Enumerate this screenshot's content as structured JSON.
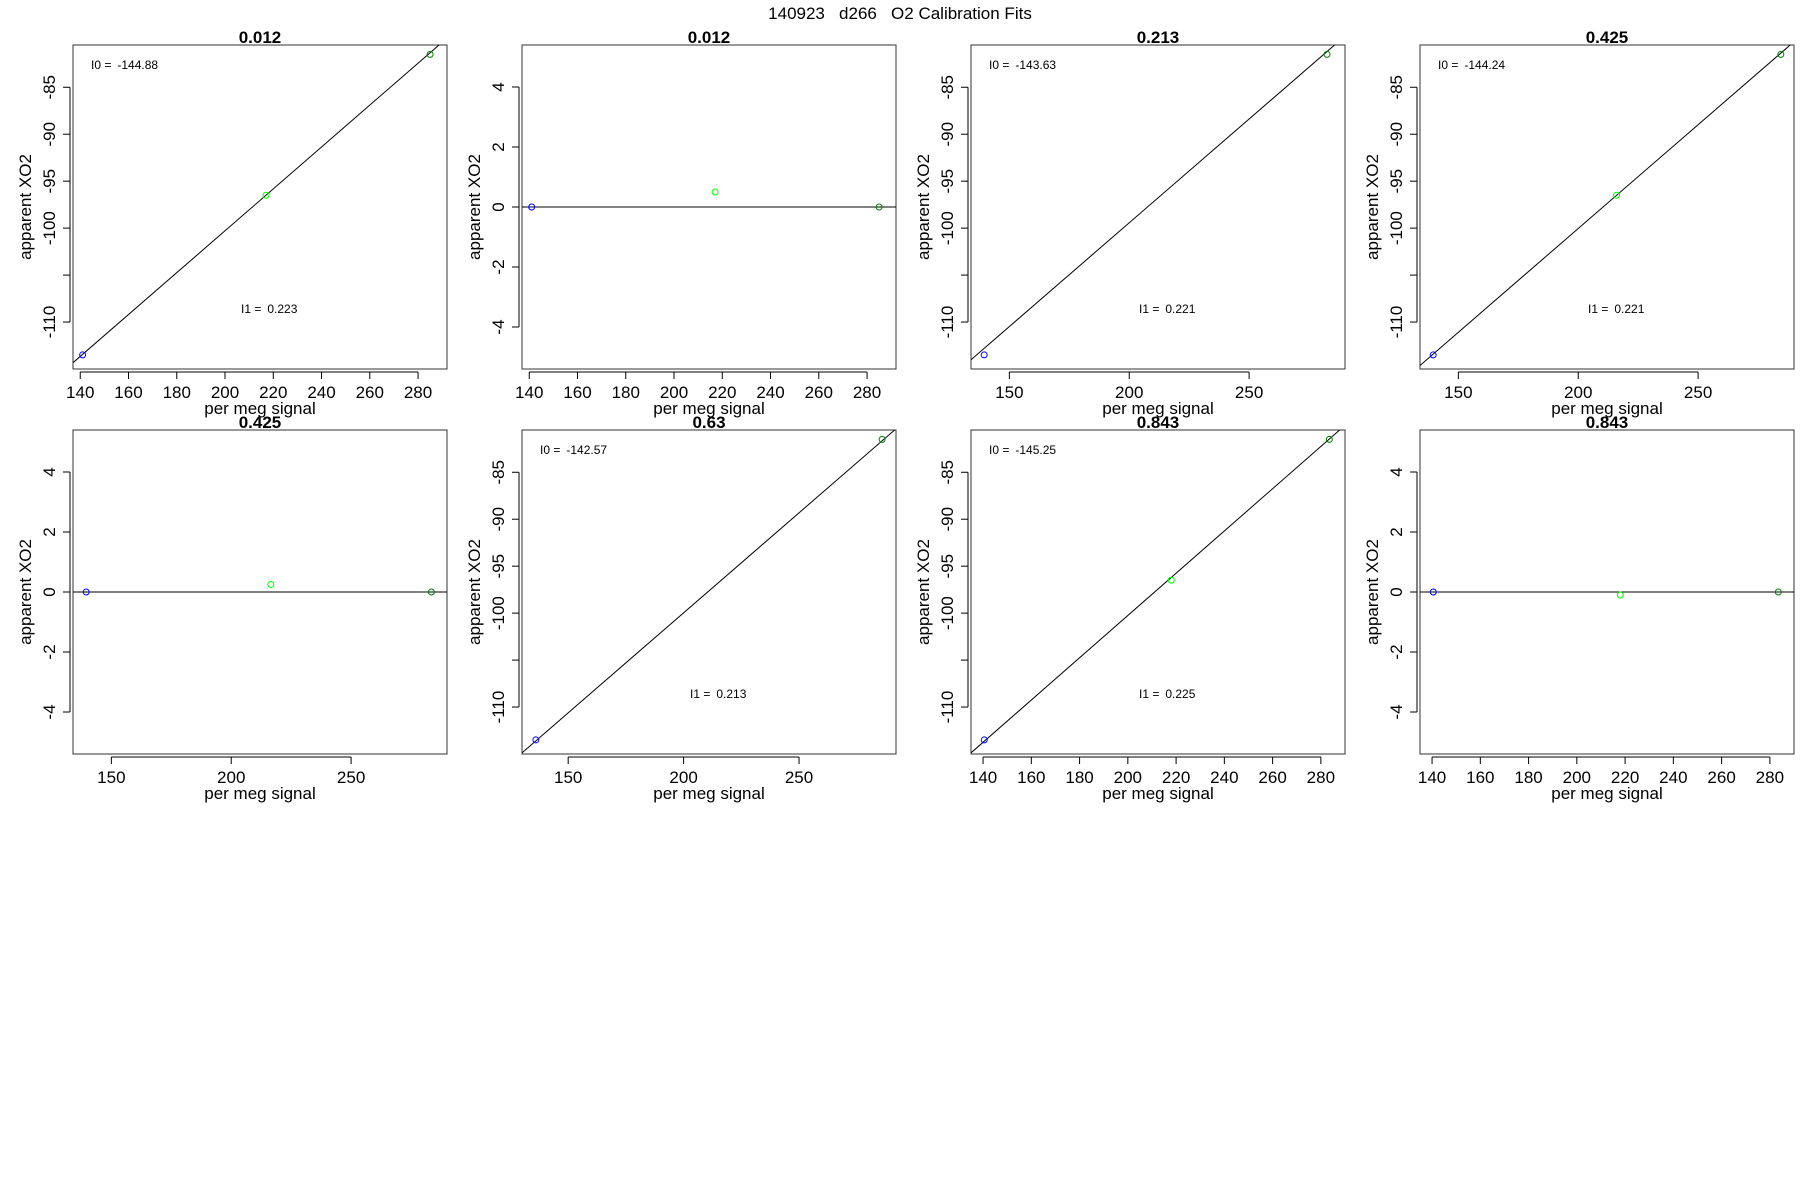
{
  "page_title": "140923   d266   O2 Calibration Fits",
  "chart_data": [
    {
      "type": "scatter",
      "title": "0.012",
      "xlabel": "per meg signal",
      "ylabel": "apparent XO2",
      "xlim": [
        137,
        292
      ],
      "xticks": [
        140,
        160,
        180,
        200,
        220,
        240,
        260,
        280
      ],
      "ylim": [
        -115,
        -80.5
      ],
      "yticks": [
        -110,
        -100,
        -95,
        -90,
        -85
      ],
      "yminor_ticks": [
        -105
      ],
      "fit": {
        "intercept": -144.88,
        "slope": 0.223
      },
      "annotations": [
        {
          "label": "I0 =",
          "value": "-144.88",
          "pos": "top-left"
        },
        {
          "label": "I1 =",
          "value": "0.223",
          "pos": "bottom-middle"
        }
      ],
      "points": [
        {
          "x": 141,
          "y": -113.5,
          "color": "#0000ff"
        },
        {
          "x": 217,
          "y": -96.5,
          "color": "#00ff00"
        },
        {
          "x": 285,
          "y": -81.5,
          "color": "#008000"
        }
      ]
    },
    {
      "type": "scatter",
      "title": "0.012",
      "xlabel": "per meg signal",
      "ylabel": "apparent XO2",
      "xlim": [
        137,
        292
      ],
      "xticks": [
        140,
        160,
        180,
        200,
        220,
        240,
        260,
        280
      ],
      "ylim": [
        -5.4,
        5.4
      ],
      "yticks": [
        -4,
        -2,
        0,
        2,
        4
      ],
      "hline": 0,
      "annotations": [],
      "points": [
        {
          "x": 141,
          "y": 0,
          "color": "#0000ff"
        },
        {
          "x": 217,
          "y": 0.5,
          "color": "#00ff00"
        },
        {
          "x": 285,
          "y": 0,
          "color": "#008000"
        }
      ]
    },
    {
      "type": "scatter",
      "title": "0.213",
      "xlabel": "per meg signal",
      "ylabel": "apparent XO2",
      "xlim": [
        134,
        290
      ],
      "xticks": [
        150,
        200,
        250
      ],
      "ylim": [
        -115,
        -80.5
      ],
      "yticks": [
        -110,
        -100,
        -95,
        -90,
        -85
      ],
      "yminor_ticks": [
        -105
      ],
      "fit": {
        "intercept": -143.63,
        "slope": 0.221
      },
      "annotations": [
        {
          "label": "I0 =",
          "value": "-143.63",
          "pos": "top-left"
        },
        {
          "label": "I1 =",
          "value": "0.221",
          "pos": "bottom-middle"
        }
      ],
      "points": [
        {
          "x": 139.5,
          "y": -113.5,
          "color": "#0000ff"
        },
        {
          "x": 282.5,
          "y": -81.5,
          "color": "#008000"
        }
      ]
    },
    {
      "type": "scatter",
      "title": "0.425",
      "xlabel": "per meg signal",
      "ylabel": "apparent XO2",
      "xlim": [
        134,
        290
      ],
      "xticks": [
        150,
        200,
        250
      ],
      "ylim": [
        -115,
        -80.5
      ],
      "yticks": [
        -110,
        -100,
        -95,
        -90,
        -85
      ],
      "yminor_ticks": [
        -105
      ],
      "fit": {
        "intercept": -144.24,
        "slope": 0.221
      },
      "annotations": [
        {
          "label": "I0 =",
          "value": "-144.24",
          "pos": "top-left"
        },
        {
          "label": "I1 =",
          "value": "0.221",
          "pos": "bottom-middle"
        }
      ],
      "points": [
        {
          "x": 139.5,
          "y": -113.5,
          "color": "#0000ff"
        },
        {
          "x": 216,
          "y": -96.5,
          "color": "#00ff00"
        },
        {
          "x": 284.5,
          "y": -81.5,
          "color": "#008000"
        }
      ]
    },
    {
      "type": "scatter",
      "title": "0.425",
      "xlabel": "per meg signal",
      "ylabel": "apparent XO2",
      "xlim": [
        134,
        290
      ],
      "xticks": [
        150,
        200,
        250
      ],
      "ylim": [
        -5.4,
        5.4
      ],
      "yticks": [
        -4,
        -2,
        0,
        2,
        4
      ],
      "hline": 0,
      "annotations": [],
      "points": [
        {
          "x": 139.5,
          "y": 0,
          "color": "#0000ff"
        },
        {
          "x": 216.5,
          "y": 0.25,
          "color": "#00ff00"
        },
        {
          "x": 283.5,
          "y": 0,
          "color": "#008000"
        }
      ]
    },
    {
      "type": "scatter",
      "title": "0.63",
      "xlabel": "per meg signal",
      "ylabel": "apparent XO2",
      "xlim": [
        130,
        292
      ],
      "xticks": [
        150,
        200,
        250
      ],
      "ylim": [
        -115,
        -80.5
      ],
      "yticks": [
        -110,
        -100,
        -95,
        -90,
        -85
      ],
      "yminor_ticks": [
        -105
      ],
      "fit": {
        "intercept": -142.57,
        "slope": 0.213
      },
      "annotations": [
        {
          "label": "I0 =",
          "value": "-142.57",
          "pos": "top-left"
        },
        {
          "label": "I1 =",
          "value": "0.213",
          "pos": "bottom-middle"
        }
      ],
      "points": [
        {
          "x": 136,
          "y": -113.5,
          "color": "#0000ff"
        },
        {
          "x": 286,
          "y": -81.5,
          "color": "#008000"
        }
      ]
    },
    {
      "type": "scatter",
      "title": "0.843",
      "xlabel": "per meg signal",
      "ylabel": "apparent XO2",
      "xlim": [
        135,
        290
      ],
      "xticks": [
        140,
        160,
        180,
        200,
        220,
        240,
        260,
        280
      ],
      "ylim": [
        -115,
        -80.5
      ],
      "yticks": [
        -110,
        -100,
        -95,
        -90,
        -85
      ],
      "yminor_ticks": [
        -105
      ],
      "fit": {
        "intercept": -145.25,
        "slope": 0.225
      },
      "annotations": [
        {
          "label": "I0 =",
          "value": "-145.25",
          "pos": "top-left"
        },
        {
          "label": "I1 =",
          "value": "0.225",
          "pos": "bottom-middle"
        }
      ],
      "points": [
        {
          "x": 140.5,
          "y": -113.5,
          "color": "#0000ff"
        },
        {
          "x": 218,
          "y": -96.5,
          "color": "#00ff00"
        },
        {
          "x": 283.5,
          "y": -81.5,
          "color": "#008000"
        }
      ]
    },
    {
      "type": "scatter",
      "title": "0.843",
      "xlabel": "per meg signal",
      "ylabel": "apparent XO2",
      "xlim": [
        135,
        290
      ],
      "xticks": [
        140,
        160,
        180,
        200,
        220,
        240,
        260,
        280
      ],
      "ylim": [
        -5.4,
        5.4
      ],
      "yticks": [
        -4,
        -2,
        0,
        2,
        4
      ],
      "hline": 0,
      "annotations": [],
      "points": [
        {
          "x": 140.5,
          "y": 0,
          "color": "#0000ff"
        },
        {
          "x": 218,
          "y": -0.1,
          "color": "#00ff00"
        },
        {
          "x": 283.5,
          "y": 0,
          "color": "#008000"
        }
      ]
    }
  ]
}
